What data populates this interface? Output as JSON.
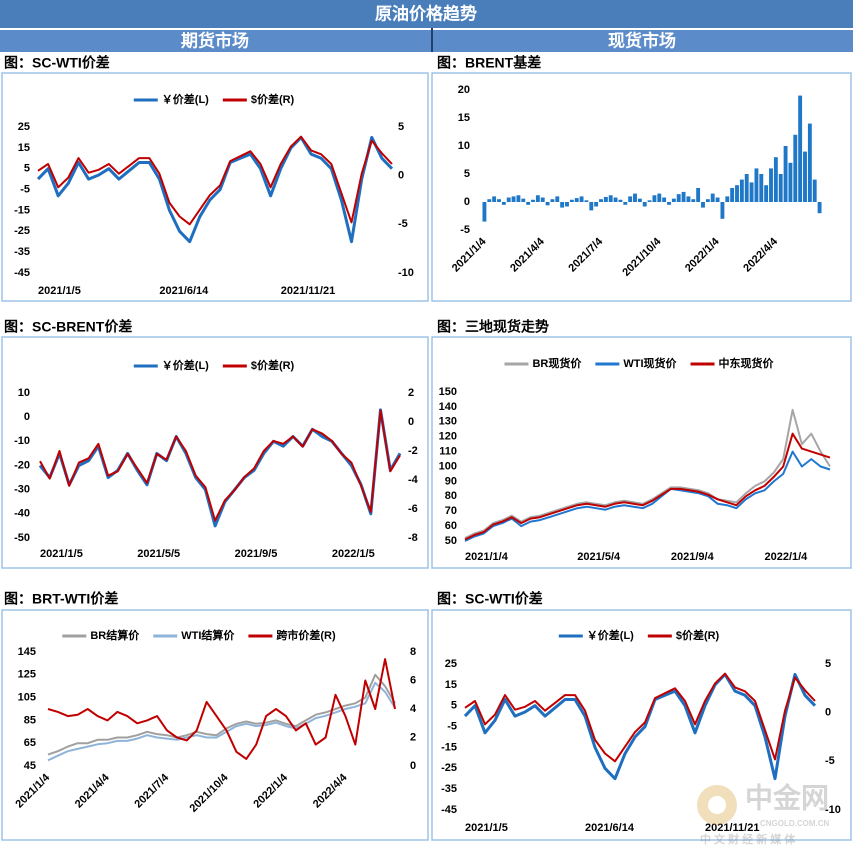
{
  "header": {
    "title": "原油价格趋势",
    "left": "期货市场",
    "right": "现货市场"
  },
  "watermark": {
    "name": "中金网",
    "url": "CNGOLD.COM.CN",
    "slogan": "中 文 财 经 新 媒 体"
  },
  "chart_data": [
    {
      "type": "line",
      "title": "图：SC-WTI价差",
      "categories": [
        "2021/1/5",
        null,
        null,
        null,
        null,
        null,
        null,
        null,
        null,
        null,
        null,
        null,
        "2021/6/14",
        null,
        null,
        null,
        null,
        null,
        null,
        null,
        null,
        null,
        null,
        null,
        "2021/11/21",
        null,
        null,
        null,
        null,
        null,
        null,
        null,
        null,
        null,
        null,
        null
      ],
      "series": [
        {
          "name": "￥价差(L)",
          "color": "#1f6fc0",
          "values": [
            0,
            5,
            -8,
            -2,
            8,
            0,
            2,
            5,
            0,
            4,
            8,
            8,
            0,
            -15,
            -25,
            -30,
            -18,
            -10,
            -5,
            8,
            10,
            12,
            5,
            -8,
            5,
            15,
            20,
            12,
            10,
            5,
            -10,
            -30,
            0,
            20,
            10,
            5
          ]
        },
        {
          "name": "$价差(R)",
          "color": "#c00000",
          "axis": "y2",
          "values": [
            0.5,
            1.2,
            -1.2,
            -0.2,
            1.8,
            0.3,
            0.6,
            1.2,
            0.2,
            1,
            1.8,
            1.8,
            0.2,
            -2.8,
            -4.2,
            -5,
            -3.5,
            -2,
            -1,
            1.5,
            2,
            2.5,
            1.2,
            -1.2,
            1.2,
            3,
            4,
            2.6,
            2.2,
            1.2,
            -1.8,
            -4.8,
            0.2,
            3.6,
            2.3,
            1.2
          ]
        }
      ],
      "ylim": [
        -45,
        25
      ],
      "yticks": [
        25,
        15,
        5,
        -5,
        -15,
        -25,
        -35,
        -45
      ],
      "y2lim": [
        -10,
        5
      ],
      "y2ticks": [
        5,
        0,
        -5,
        -10
      ],
      "grid": false
    },
    {
      "type": "bar",
      "title": "图：BRENT基差",
      "color": "#1f77c8",
      "categories": [
        "2021/1/4",
        null,
        null,
        null,
        null,
        null,
        null,
        null,
        null,
        null,
        null,
        null,
        "2021/4/4",
        null,
        null,
        null,
        null,
        null,
        null,
        null,
        null,
        null,
        null,
        null,
        "2021/7/4",
        null,
        null,
        null,
        null,
        null,
        null,
        null,
        null,
        null,
        null,
        null,
        "2021/10/4",
        null,
        null,
        null,
        null,
        null,
        null,
        null,
        null,
        null,
        null,
        null,
        "2022/1/4",
        null,
        null,
        null,
        null,
        null,
        null,
        null,
        null,
        null,
        null,
        null,
        "2022/4/4",
        null,
        null,
        null,
        null,
        null,
        null,
        null,
        null,
        null
      ],
      "values": [
        -3.5,
        0.5,
        1,
        0.5,
        -0.5,
        0.8,
        1,
        1.2,
        0.6,
        -0.5,
        0.4,
        1.2,
        0.8,
        -0.6,
        0.5,
        1,
        -1,
        -0.8,
        0.4,
        0.7,
        1,
        0.3,
        -1.5,
        -0.8,
        0.5,
        0.9,
        1.2,
        0.8,
        0.4,
        -0.5,
        1,
        1.5,
        0.6,
        -0.8,
        0.3,
        1.2,
        1.5,
        0.8,
        -0.5,
        0.6,
        1.4,
        1.8,
        1,
        0.5,
        2.5,
        -1,
        0.5,
        1.5,
        0.8,
        -3,
        1,
        2.5,
        3,
        4,
        5,
        3.5,
        6,
        5,
        3,
        6,
        8,
        5,
        10,
        7,
        12,
        19,
        9,
        14,
        4,
        -2
      ],
      "ylim": [
        -5,
        20
      ],
      "yticks": [
        20,
        15,
        10,
        5,
        0,
        -5
      ],
      "grid": false
    },
    {
      "type": "line",
      "title": "图：SC-BRENT价差",
      "categories": [
        "2021/1/5",
        null,
        null,
        null,
        null,
        null,
        null,
        null,
        null,
        null,
        "2021/5/5",
        null,
        null,
        null,
        null,
        null,
        null,
        null,
        null,
        null,
        "2021/9/5",
        null,
        null,
        null,
        null,
        null,
        null,
        null,
        null,
        null,
        "2022/1/5",
        null,
        null,
        null,
        null,
        null,
        null,
        null
      ],
      "series": [
        {
          "name": "￥价差(L)",
          "color": "#1f6fc0",
          "values": [
            -20,
            -25,
            -15,
            -28,
            -20,
            -18,
            -12,
            -25,
            -22,
            -15,
            -22,
            -28,
            -15,
            -18,
            -8,
            -15,
            -25,
            -30,
            -45,
            -35,
            -30,
            -25,
            -22,
            -15,
            -10,
            -12,
            -8,
            -12,
            -5,
            -8,
            -10,
            -15,
            -20,
            -28,
            -40,
            3,
            -22,
            -15
          ]
        },
        {
          "name": "$价差(R)",
          "color": "#c00000",
          "axis": "y2",
          "values": [
            -2.7,
            -3.9,
            -2,
            -4.4,
            -2.8,
            -2.5,
            -1.5,
            -3.7,
            -3.4,
            -2.2,
            -3.2,
            -4.2,
            -2.2,
            -2.6,
            -1,
            -2,
            -3.7,
            -4.5,
            -6.8,
            -5.4,
            -4.7,
            -3.8,
            -3.2,
            -2,
            -1.3,
            -1.5,
            -1,
            -1.7,
            -0.5,
            -0.8,
            -1.3,
            -2.2,
            -2.8,
            -4.4,
            -6.2,
            0.8,
            -3.4,
            -2.3
          ]
        }
      ],
      "ylim": [
        -50,
        10
      ],
      "yticks": [
        10,
        0,
        -10,
        -20,
        -30,
        -40,
        -50
      ],
      "y2lim": [
        -8,
        2
      ],
      "y2ticks": [
        2,
        0,
        -2,
        -4,
        -6,
        -8
      ],
      "grid": false
    },
    {
      "type": "line",
      "title": "图：三地现货走势",
      "categories": [
        "2021/1/4",
        null,
        null,
        null,
        null,
        null,
        null,
        null,
        null,
        null,
        null,
        null,
        "2021/5/4",
        null,
        null,
        null,
        null,
        null,
        null,
        null,
        null,
        null,
        "2021/9/4",
        null,
        null,
        null,
        null,
        null,
        null,
        null,
        null,
        null,
        "2022/1/4",
        null,
        null,
        null,
        null,
        null,
        null,
        null
      ],
      "series": [
        {
          "name": "BR现货价",
          "color": "#a6a6a6",
          "values": [
            52,
            55,
            57,
            62,
            64,
            67,
            63,
            66,
            67,
            69,
            71,
            73,
            75,
            76,
            75,
            74,
            76,
            77,
            76,
            75,
            78,
            82,
            86,
            86,
            85,
            84,
            82,
            78,
            77,
            76,
            82,
            87,
            90,
            96,
            105,
            138,
            115,
            122,
            110,
            100
          ]
        },
        {
          "name": "WTI现货价",
          "color": "#1f77d0",
          "values": [
            50,
            53,
            55,
            60,
            62,
            65,
            60,
            63,
            64,
            66,
            68,
            70,
            72,
            73,
            72,
            71,
            73,
            74,
            73,
            72,
            75,
            80,
            85,
            84,
            83,
            82,
            80,
            75,
            74,
            72,
            78,
            82,
            84,
            90,
            95,
            110,
            100,
            105,
            100,
            98
          ]
        },
        {
          "name": "中东现货价",
          "color": "#c00000",
          "values": [
            51,
            54,
            56,
            61,
            63,
            66,
            62,
            65,
            66,
            68,
            70,
            72,
            74,
            75,
            74,
            73,
            75,
            76,
            75,
            74,
            77,
            81,
            85,
            85,
            84,
            83,
            81,
            78,
            76,
            74,
            80,
            84,
            87,
            93,
            100,
            122,
            112,
            110,
            108,
            106
          ]
        }
      ],
      "ylim": [
        50,
        150
      ],
      "yticks": [
        150,
        140,
        130,
        120,
        110,
        100,
        90,
        80,
        70,
        60,
        50
      ],
      "grid": false
    },
    {
      "type": "line",
      "title": "图：BRT-WTI价差",
      "categories": [
        "2021/1/4",
        null,
        null,
        null,
        null,
        null,
        "2021/4/4",
        null,
        null,
        null,
        null,
        null,
        "2021/7/4",
        null,
        null,
        null,
        null,
        null,
        "2021/10/4",
        null,
        null,
        null,
        null,
        null,
        "2022/1/4",
        null,
        null,
        null,
        null,
        null,
        "2022/4/4",
        null,
        null,
        null,
        null,
        null
      ],
      "series": [
        {
          "name": "BR结算价",
          "color": "#a0a0a0",
          "values": [
            55,
            58,
            62,
            65,
            65,
            68,
            68,
            70,
            70,
            72,
            75,
            73,
            72,
            70,
            72,
            75,
            73,
            72,
            78,
            82,
            84,
            82,
            83,
            85,
            82,
            80,
            85,
            90,
            92,
            95,
            98,
            100,
            105,
            125,
            115,
            100
          ]
        },
        {
          "name": "WTI结算价",
          "color": "#8fb4d9",
          "values": [
            50,
            54,
            58,
            60,
            62,
            64,
            65,
            67,
            67,
            69,
            72,
            70,
            69,
            68,
            70,
            72,
            70,
            70,
            75,
            80,
            82,
            80,
            81,
            83,
            80,
            78,
            82,
            87,
            89,
            92,
            95,
            97,
            100,
            118,
            110,
            96
          ]
        },
        {
          "name": "跨市价差(R)",
          "color": "#c00000",
          "axis": "y2",
          "values": [
            4,
            3.8,
            3.5,
            3.6,
            4,
            3.5,
            3.2,
            3.8,
            3.5,
            3,
            3.2,
            3.5,
            2.5,
            2,
            1.8,
            2.5,
            4.5,
            3.5,
            2.5,
            1,
            0.5,
            1.5,
            3.5,
            4,
            3.5,
            2.5,
            3,
            1.5,
            2,
            5,
            3.5,
            1.5,
            6,
            4,
            7.5,
            4
          ]
        }
      ],
      "ylim": [
        45,
        145
      ],
      "yticks": [
        145,
        125,
        105,
        85,
        65,
        45
      ],
      "y2lim": [
        0,
        8
      ],
      "y2ticks": [
        8,
        6,
        4,
        2,
        0
      ],
      "grid": false
    },
    {
      "type": "line",
      "title": "图：SC-WTI价差",
      "categories": [
        "2021/1/5",
        null,
        null,
        null,
        null,
        null,
        null,
        null,
        null,
        null,
        null,
        null,
        "2021/6/14",
        null,
        null,
        null,
        null,
        null,
        null,
        null,
        null,
        null,
        null,
        null,
        "2021/11/21",
        null,
        null,
        null,
        null,
        null,
        null,
        null,
        null,
        null,
        null,
        null
      ],
      "series": [
        {
          "name": "￥价差(L)",
          "color": "#1f6fc0",
          "values": [
            0,
            5,
            -8,
            -2,
            8,
            0,
            2,
            5,
            0,
            4,
            8,
            8,
            0,
            -15,
            -25,
            -30,
            -18,
            -10,
            -5,
            8,
            10,
            12,
            5,
            -8,
            5,
            15,
            20,
            12,
            10,
            5,
            -10,
            -30,
            0,
            20,
            10,
            5
          ]
        },
        {
          "name": "$价差(R)",
          "color": "#c00000",
          "axis": "y2",
          "values": [
            0.5,
            1.2,
            -1.2,
            -0.2,
            1.8,
            0.3,
            0.6,
            1.2,
            0.2,
            1,
            1.8,
            1.8,
            0.2,
            -2.8,
            -4.2,
            -5,
            -3.5,
            -2,
            -1,
            1.5,
            2,
            2.5,
            1.2,
            -1.2,
            1.2,
            3,
            4,
            2.6,
            2.2,
            1.2,
            -1.8,
            -4.8,
            0.2,
            3.6,
            2.3,
            1.2
          ]
        }
      ],
      "ylim": [
        -45,
        25
      ],
      "yticks": [
        25,
        15,
        5,
        -5,
        -15,
        -25,
        -35,
        -45
      ],
      "y2lim": [
        -10,
        5
      ],
      "y2ticks": [
        5,
        0,
        -5,
        -10
      ],
      "grid": false
    }
  ]
}
